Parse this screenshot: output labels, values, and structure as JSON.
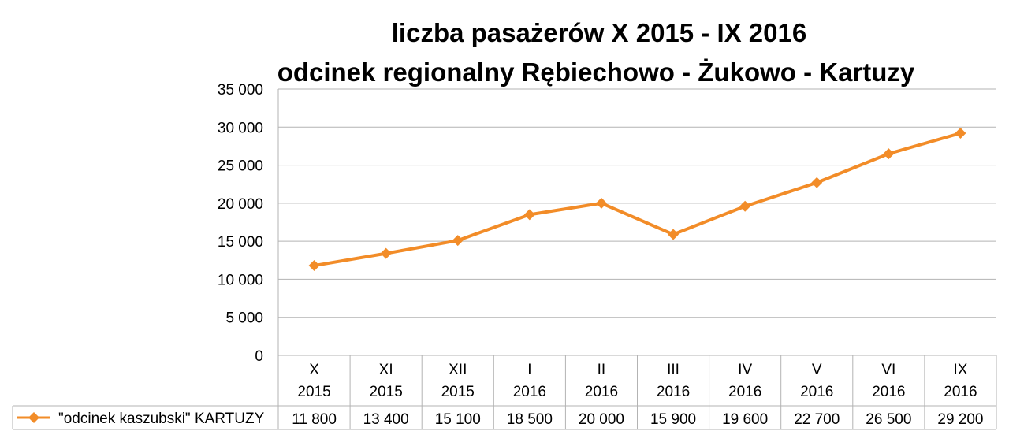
{
  "chart_data": {
    "type": "line",
    "title": [
      "liczba pasażerów X 2015 - IX 2016",
      "odcinek regionalny Rębiechowo - Żukowo - Kartuzy"
    ],
    "categories": [
      [
        "X",
        "2015"
      ],
      [
        "XI",
        "2015"
      ],
      [
        "XII",
        "2015"
      ],
      [
        "I",
        "2016"
      ],
      [
        "II",
        "2016"
      ],
      [
        "III",
        "2016"
      ],
      [
        "IV",
        "2016"
      ],
      [
        "V",
        "2016"
      ],
      [
        "VI",
        "2016"
      ],
      [
        "IX",
        "2016"
      ]
    ],
    "series": [
      {
        "name": "\"odcinek kaszubski\" KARTUZY",
        "color": "#F28C28",
        "marker": "diamond",
        "values": [
          11800,
          13400,
          15100,
          18500,
          20000,
          15900,
          19600,
          22700,
          26500,
          29200
        ],
        "value_labels": [
          "11 800",
          "13 400",
          "15 100",
          "18 500",
          "20 000",
          "15 900",
          "19 600",
          "22 700",
          "26 500",
          "29 200"
        ]
      }
    ],
    "ylim": [
      0,
      35000
    ],
    "yticks": [
      0,
      5000,
      10000,
      15000,
      20000,
      25000,
      30000,
      35000
    ],
    "ytick_labels": [
      "0",
      "5 000",
      "10 000",
      "15 000",
      "20 000",
      "25 000",
      "30 000",
      "35 000"
    ],
    "grid": true,
    "legend": "data-table-left"
  }
}
